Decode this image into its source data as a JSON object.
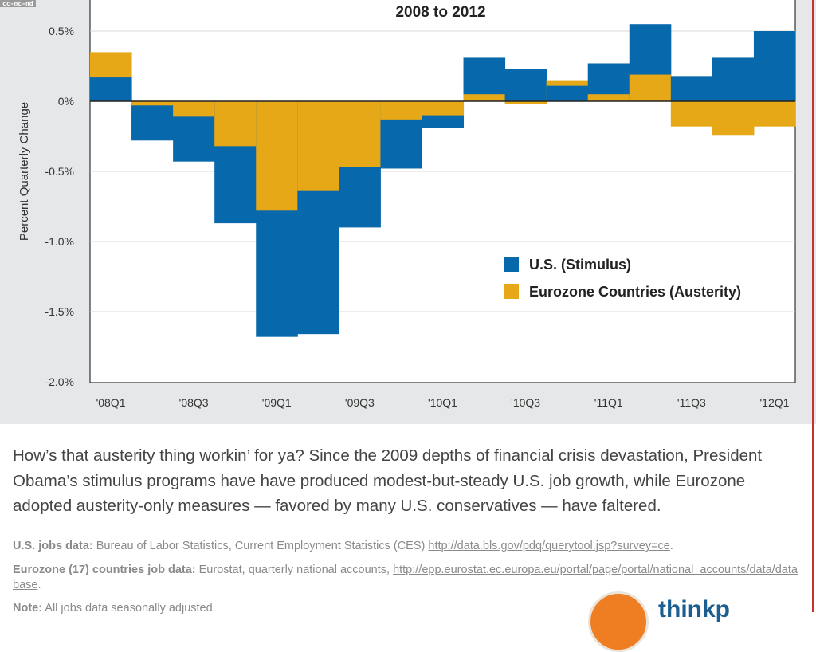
{
  "badge": "cc-nc-nd",
  "chart_data": {
    "type": "bar",
    "title": "2008 to 2012",
    "ylabel": "Percent Quarterly Change",
    "ylim": [
      -2.0,
      0.72
    ],
    "yticks": [
      0.5,
      0,
      -0.5,
      -1.0,
      -1.5,
      -2.0
    ],
    "ytick_labels": [
      "0.5%",
      "0%",
      "-0.5%",
      "-1.0%",
      "-1.5%",
      "-2.0%"
    ],
    "grid": true,
    "legend_placement": "right-center",
    "categories": [
      "'08Q1",
      "'08Q2",
      "'08Q3",
      "'08Q4",
      "'09Q1",
      "'09Q2",
      "'09Q3",
      "'09Q4",
      "'10Q1",
      "'10Q2",
      "'10Q3",
      "'10Q4",
      "'11Q1",
      "'11Q2",
      "'11Q3",
      "'11Q4",
      "'12Q1"
    ],
    "xtick_labels": [
      "'08Q1",
      "'08Q3",
      "'09Q1",
      "'09Q3",
      "'10Q1",
      "'10Q3",
      "'11Q1",
      "'11Q3",
      "'12Q1"
    ],
    "series": [
      {
        "name": "U.S. (Stimulus)",
        "color": "#0868ac",
        "values": [
          0.17,
          -0.28,
          -0.43,
          -0.87,
          -1.68,
          -1.66,
          -0.9,
          -0.48,
          -0.19,
          0.31,
          0.23,
          0.11,
          0.27,
          0.55,
          0.18,
          0.31,
          0.5
        ]
      },
      {
        "name": "Eurozone Countries (Austerity)",
        "color": "#e6a817",
        "values": [
          0.35,
          -0.03,
          -0.11,
          -0.32,
          -0.78,
          -0.64,
          -0.47,
          -0.13,
          -0.1,
          0.05,
          -0.02,
          0.15,
          0.05,
          0.19,
          -0.18,
          -0.24,
          -0.18
        ]
      }
    ]
  },
  "caption": "How’s that austerity thing workin’ for ya? Since the 2009 depths of financial crisis devastation, President Obama’s stimulus programs have have produced modest-but-steady U.S. job growth, while Eurozone adopted austerity-only measures — favored by many U.S. conservatives — have faltered.",
  "sources": {
    "us_label": "U.S. jobs data:",
    "us_text": " Bureau of Labor Statistics, Current Employment Statistics (CES) ",
    "us_link": "http://data.bls.gov/pdq/querytool.jsp?survey=ce",
    "ez_label": "Eurozone (17) countries job data:",
    "ez_text": " Eurostat, quarterly national accounts, ",
    "ez_link": "http://epp.eurostat.ec.europa.eu/portal/page/portal/national_accounts/data/database",
    "note_label": "Note:",
    "note_text": " All jobs data seasonally adjusted."
  },
  "logo_text": "thinkp"
}
